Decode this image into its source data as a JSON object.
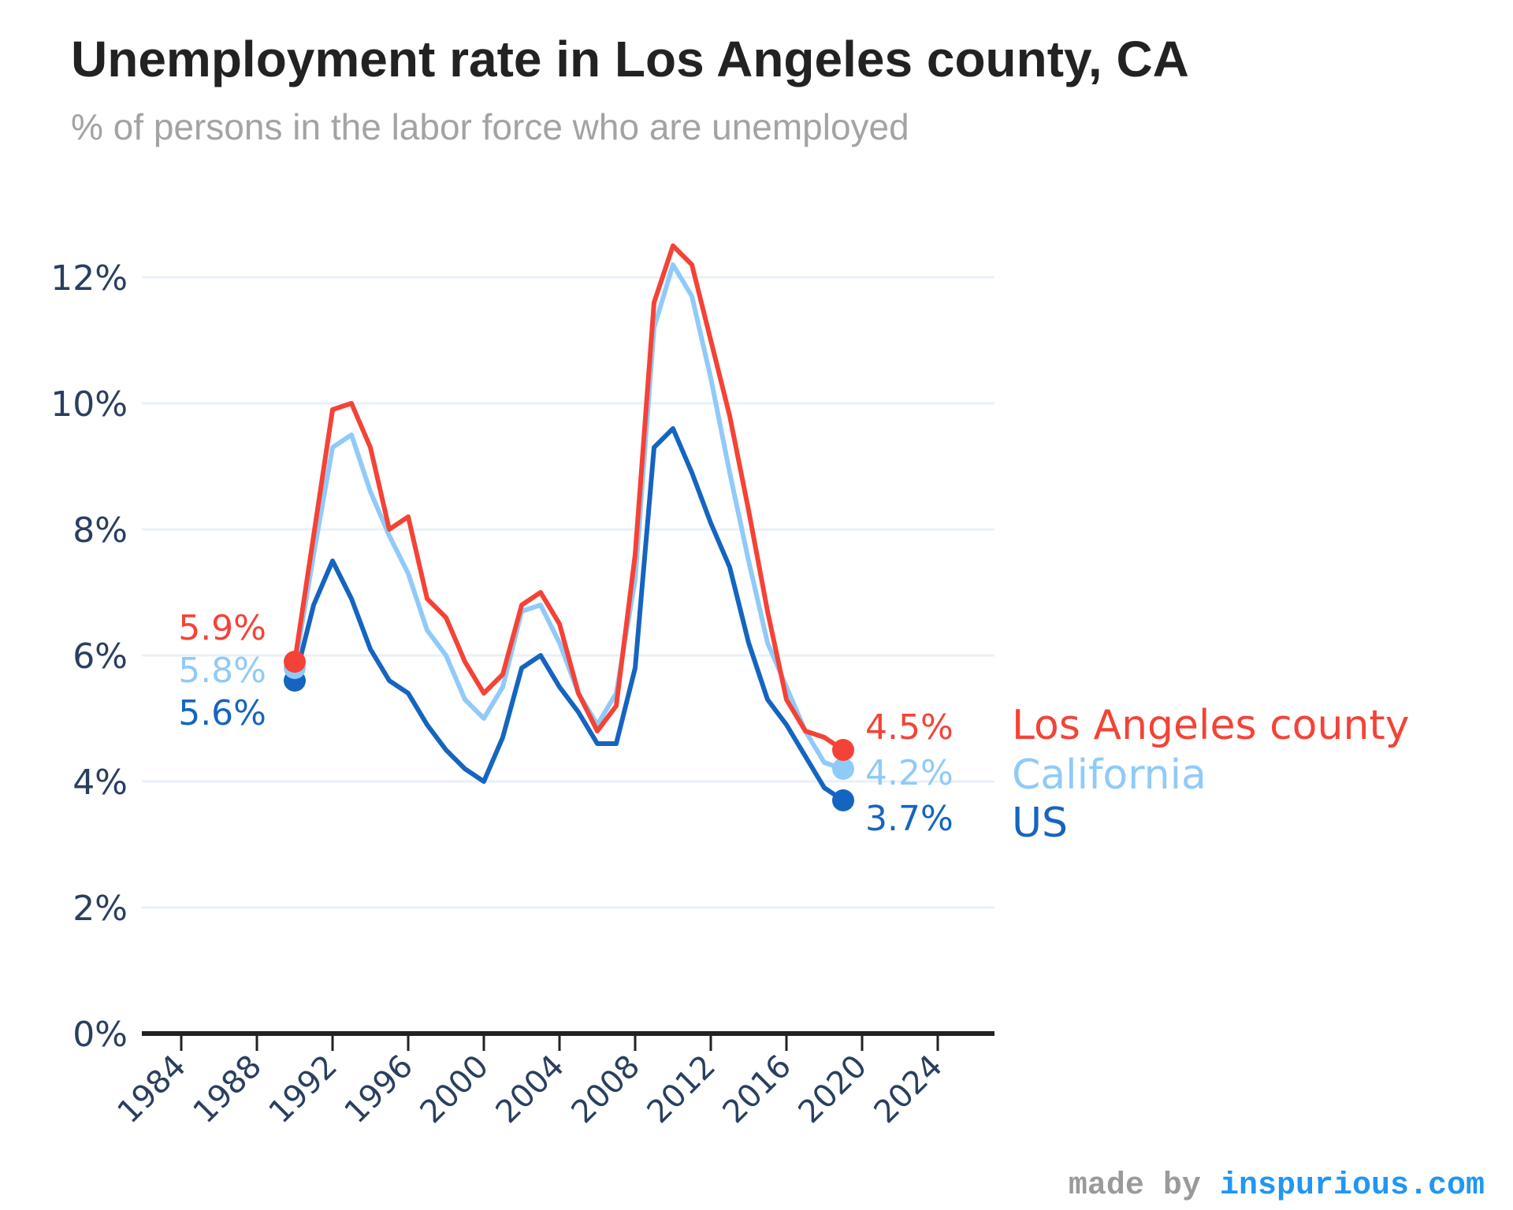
{
  "chart_data": {
    "type": "line",
    "title": "Unemployment rate in Los Angeles county, CA",
    "subtitle": "% of persons in the labor force who are unemployed",
    "xlabel": "",
    "ylabel": "",
    "xlim": [
      1983,
      2027
    ],
    "ylim": [
      0,
      13
    ],
    "x_ticks": [
      1984,
      1988,
      1992,
      1996,
      2000,
      2004,
      2008,
      2012,
      2016,
      2020,
      2024
    ],
    "y_ticks": [
      0,
      2,
      4,
      6,
      8,
      10,
      12
    ],
    "y_tick_suffix": "%",
    "grid": true,
    "legend": "right, labels at line ends",
    "x": [
      1990,
      1991,
      1992,
      1993,
      1994,
      1995,
      1996,
      1997,
      1998,
      1999,
      2000,
      2001,
      2002,
      2003,
      2004,
      2005,
      2006,
      2007,
      2008,
      2009,
      2010,
      2011,
      2012,
      2013,
      2014,
      2015,
      2016,
      2017,
      2018,
      2019
    ],
    "series": [
      {
        "name": "Los Angeles county",
        "color": "#f44336",
        "values": [
          5.9,
          7.9,
          9.9,
          10.0,
          9.3,
          8.0,
          8.2,
          6.9,
          6.6,
          5.9,
          5.4,
          5.7,
          6.8,
          7.0,
          6.5,
          5.4,
          4.8,
          5.2,
          7.6,
          11.6,
          12.5,
          12.2,
          11.0,
          9.8,
          8.3,
          6.7,
          5.3,
          4.8,
          4.7,
          4.5
        ],
        "start_label": "5.9%",
        "end_label": "4.5%"
      },
      {
        "name": "California",
        "color": "#90caf9",
        "values": [
          5.8,
          7.6,
          9.3,
          9.5,
          8.6,
          7.9,
          7.3,
          6.4,
          6.0,
          5.3,
          5.0,
          5.5,
          6.7,
          6.8,
          6.2,
          5.4,
          4.9,
          5.4,
          7.2,
          11.2,
          12.2,
          11.7,
          10.4,
          8.9,
          7.5,
          6.2,
          5.5,
          4.8,
          4.3,
          4.2
        ],
        "start_label": "5.8%",
        "end_label": "4.2%"
      },
      {
        "name": "US",
        "color": "#1565c0",
        "values": [
          5.6,
          6.8,
          7.5,
          6.9,
          6.1,
          5.6,
          5.4,
          4.9,
          4.5,
          4.2,
          4.0,
          4.7,
          5.8,
          6.0,
          5.5,
          5.1,
          4.6,
          4.6,
          5.8,
          9.3,
          9.6,
          8.9,
          8.1,
          7.4,
          6.2,
          5.3,
          4.9,
          4.4,
          3.9,
          3.7
        ],
        "start_label": "5.6%",
        "end_label": "3.7%"
      }
    ]
  },
  "credit": {
    "prefix": "made by ",
    "site": "inspurious.com"
  }
}
